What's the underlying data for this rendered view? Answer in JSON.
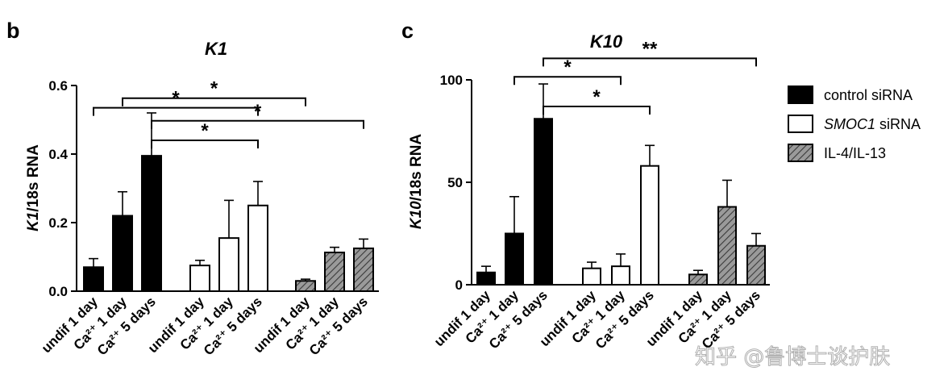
{
  "chart_data": [
    {
      "panel": "b",
      "type": "bar",
      "title": "K1",
      "ylabel_italic": "K1",
      "ylabel_rest": "/18s RNA",
      "ylim": [
        0,
        0.6
      ],
      "yticks": [
        0.0,
        0.2,
        0.4,
        0.6
      ],
      "ytick_labels": [
        "0.0",
        "0.2",
        "0.4",
        "0.6"
      ],
      "groups": [
        {
          "series": "control siRNA",
          "bars": [
            {
              "label": "undif 1 day",
              "value": 0.07,
              "err": 0.095
            },
            {
              "label": "Ca²⁺ 1 day",
              "value": 0.22,
              "err": 0.29
            },
            {
              "label": "Ca²⁺ 5 days",
              "value": 0.395,
              "err": 0.52
            }
          ]
        },
        {
          "series": "SMOC1 siRNA",
          "bars": [
            {
              "label": "undif 1 day",
              "value": 0.075,
              "err": 0.09
            },
            {
              "label": "Ca²⁺ 1 day",
              "value": 0.155,
              "err": 0.265
            },
            {
              "label": "Ca²⁺ 5 days",
              "value": 0.25,
              "err": 0.32
            }
          ]
        },
        {
          "series": "IL-4/IL-13",
          "bars": [
            {
              "label": "undif 1 day",
              "value": 0.03,
              "err": 0.035
            },
            {
              "label": "Ca²⁺ 1 day",
              "value": 0.113,
              "err": 0.128
            },
            {
              "label": "Ca²⁺ 5 days",
              "value": 0.125,
              "err": 0.152
            }
          ]
        }
      ],
      "significance": [
        {
          "from": [
            0,
            1
          ],
          "to": [
            2,
            0
          ],
          "y": 0.563,
          "label": "*"
        },
        {
          "from": [
            0,
            0
          ],
          "to": [
            1,
            2
          ],
          "y": 0.535,
          "label": "*"
        },
        {
          "from": [
            0,
            2
          ],
          "to": [
            2,
            2
          ],
          "y": 0.497,
          "label": "*"
        },
        {
          "from": [
            0,
            2
          ],
          "to": [
            1,
            2
          ],
          "y": 0.44,
          "label": "*"
        }
      ]
    },
    {
      "panel": "c",
      "type": "bar",
      "title": "K10",
      "ylabel_italic": "K10",
      "ylabel_rest": "/18s RNA",
      "ylim": [
        0,
        100
      ],
      "yticks": [
        0,
        50,
        100
      ],
      "ytick_labels": [
        "0",
        "50",
        "100"
      ],
      "groups": [
        {
          "series": "control siRNA",
          "bars": [
            {
              "label": "undif 1 day",
              "value": 6,
              "err": 9
            },
            {
              "label": "Ca²⁺ 1 day",
              "value": 25,
              "err": 43
            },
            {
              "label": "Ca²⁺ 5 days",
              "value": 81,
              "err": 98
            }
          ]
        },
        {
          "series": "SMOC1 siRNA",
          "bars": [
            {
              "label": "undif 1 day",
              "value": 8,
              "err": 11
            },
            {
              "label": "Ca²⁺ 1 day",
              "value": 9,
              "err": 15
            },
            {
              "label": "Ca²⁺ 5 days",
              "value": 58,
              "err": 68
            }
          ]
        },
        {
          "series": "IL-4/IL-13",
          "bars": [
            {
              "label": "undif 1 day",
              "value": 5,
              "err": 7
            },
            {
              "label": "Ca²⁺ 1 day",
              "value": 38,
              "err": 51
            },
            {
              "label": "Ca²⁺ 5 days",
              "value": 19,
              "err": 25
            }
          ]
        }
      ],
      "significance": [
        {
          "from": [
            0,
            2
          ],
          "to": [
            2,
            2
          ],
          "y": 110.5,
          "label": "**"
        },
        {
          "from": [
            0,
            1
          ],
          "to": [
            1,
            1
          ],
          "y": 101.5,
          "label": "*"
        },
        {
          "from": [
            0,
            2
          ],
          "to": [
            1,
            2
          ],
          "y": 87,
          "label": "*"
        }
      ]
    }
  ],
  "legend": {
    "placement": "right",
    "items": [
      {
        "series": "control siRNA",
        "text": "control siRNA",
        "italic_part": ""
      },
      {
        "series": "SMOC1 siRNA",
        "italic_part": "SMOC1",
        "text": " siRNA"
      },
      {
        "series": "IL-4/IL-13",
        "text": "IL-4/IL-13",
        "italic_part": ""
      }
    ]
  },
  "series_styles": {
    "control siRNA": {
      "fill": "#000000",
      "pattern": "solid"
    },
    "SMOC1 siRNA": {
      "fill": "#ffffff",
      "pattern": "solid"
    },
    "IL-4/IL-13": {
      "fill": "#8c8c8c",
      "pattern": "hatch"
    }
  },
  "watermark": "知乎 @鲁博士谈护肤"
}
